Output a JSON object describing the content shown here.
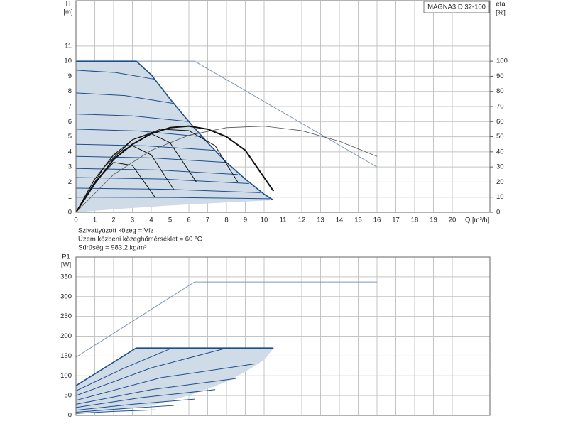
{
  "chart_data": [
    {
      "type": "line",
      "title": "MAGNA3 D 32-100",
      "ylabel": "H",
      "yunit": "[m]",
      "y2label": "eta",
      "y2unit": "[%]",
      "xlabel": "Q [m³/h]",
      "annotations": [
        "Szivattyúzott közeg = Víz",
        "Üzem közbeni közeghőmérséklet = 60 °C",
        "Sűrűség = 983.2 kg/m³"
      ],
      "xlim": [
        0,
        22
      ],
      "xticks": [
        0,
        1,
        2,
        3,
        4,
        5,
        6,
        7,
        8,
        9,
        10,
        11,
        12,
        13,
        14,
        15,
        16,
        17,
        18,
        19,
        20
      ],
      "ylim": [
        0,
        14
      ],
      "yticks": [
        0,
        1,
        2,
        3,
        4,
        5,
        6,
        7,
        8,
        9,
        10,
        11
      ],
      "y2lim": [
        0,
        140
      ],
      "y2ticks": [
        0,
        10,
        20,
        30,
        40,
        50,
        60,
        70,
        80,
        90,
        100
      ],
      "grid": true,
      "areas": [
        {
          "color": "#cfdbe7",
          "x": [
            0,
            3.2,
            4,
            5,
            6,
            7,
            8,
            9,
            10,
            10.5,
            8,
            5,
            2,
            0
          ],
          "values": [
            10,
            10,
            9.1,
            7.5,
            6.0,
            4.6,
            3.3,
            2.2,
            1.2,
            0.8,
            0.65,
            0.45,
            0.2,
            0
          ]
        }
      ],
      "series": [
        {
          "color": "#7f96b8",
          "linewidth": 1,
          "x": [
            0,
            6.3,
            16
          ],
          "values": [
            10,
            10,
            3
          ]
        },
        {
          "color": "#1f4e8c",
          "linewidth": 1.6,
          "x": [
            0,
            3.2,
            4,
            5,
            6,
            7,
            8,
            9,
            10,
            10.5
          ],
          "values": [
            10,
            10,
            9.1,
            7.5,
            6.0,
            4.6,
            3.3,
            2.2,
            1.2,
            0.8
          ]
        },
        {
          "color": "#1f4e8c",
          "linewidth": 1,
          "x": [
            0,
            2.1,
            4.2
          ],
          "values": [
            9.4,
            9.25,
            8.8
          ]
        },
        {
          "color": "#1f4e8c",
          "linewidth": 1,
          "x": [
            0,
            2.6,
            5.2
          ],
          "values": [
            7.9,
            7.72,
            7.2
          ]
        },
        {
          "color": "#1f4e8c",
          "linewidth": 1,
          "x": [
            0,
            3.0,
            6.0
          ],
          "values": [
            6.5,
            6.38,
            6.0
          ]
        },
        {
          "color": "#1f4e8c",
          "linewidth": 1,
          "x": [
            0,
            3.35,
            6.7
          ],
          "values": [
            5.5,
            5.38,
            5.0
          ]
        },
        {
          "color": "#1f4e8c",
          "linewidth": 1,
          "x": [
            0,
            3.7,
            7.4
          ],
          "values": [
            4.5,
            4.4,
            4.1
          ]
        },
        {
          "color": "#1f4e8c",
          "linewidth": 1,
          "x": [
            0,
            4.0,
            8.0
          ],
          "values": [
            3.7,
            3.6,
            3.3
          ]
        },
        {
          "color": "#1f4e8c",
          "linewidth": 1,
          "x": [
            0,
            4.3,
            8.6
          ],
          "values": [
            2.9,
            2.8,
            2.5
          ]
        },
        {
          "color": "#1f4e8c",
          "linewidth": 1,
          "x": [
            0,
            4.6,
            9.2
          ],
          "values": [
            2.3,
            2.2,
            1.9
          ]
        },
        {
          "color": "#1f4e8c",
          "linewidth": 1,
          "x": [
            0,
            4.9,
            9.8
          ],
          "values": [
            1.6,
            1.52,
            1.3
          ]
        },
        {
          "color": "#1f4e8c",
          "linewidth": 1,
          "x": [
            0,
            5.15,
            10.3
          ],
          "values": [
            1.0,
            0.98,
            0.9
          ]
        },
        {
          "color": "#555555",
          "linewidth": 0.8,
          "axis": "y2",
          "x": [
            0,
            2,
            4,
            6,
            8,
            10,
            12,
            14,
            16
          ],
          "values": [
            0,
            25,
            41,
            51,
            56,
            57,
            54,
            47,
            37
          ]
        },
        {
          "color": "#111111",
          "linewidth": 1,
          "axis": "y2",
          "x": [
            0,
            1,
            2,
            3,
            4.2
          ],
          "values": [
            0,
            20,
            33,
            31,
            10
          ]
        },
        {
          "color": "#111111",
          "linewidth": 1,
          "axis": "y2",
          "x": [
            0,
            1,
            2,
            3,
            4,
            5.2
          ],
          "values": [
            0,
            22,
            38,
            44,
            38,
            15
          ]
        },
        {
          "color": "#111111",
          "linewidth": 1,
          "axis": "y2",
          "x": [
            0,
            1,
            2,
            3,
            4,
            5,
            6.4
          ],
          "values": [
            0,
            22,
            38,
            48,
            52,
            46,
            20
          ]
        },
        {
          "color": "#111111",
          "linewidth": 1,
          "axis": "y2",
          "x": [
            0,
            1.5,
            3,
            4.5,
            6,
            7.4,
            8.6
          ],
          "values": [
            0,
            30,
            48,
            55,
            54,
            44,
            20
          ]
        },
        {
          "color": "#111111",
          "linewidth": 2,
          "axis": "y2",
          "x": [
            0,
            1,
            2,
            3,
            4,
            5,
            6,
            7,
            8,
            9,
            10,
            10.5
          ],
          "values": [
            0,
            19,
            35,
            45,
            52,
            56,
            57,
            55,
            50,
            41,
            23,
            14
          ]
        }
      ]
    },
    {
      "type": "line",
      "ylabel": "P1",
      "yunit": "[W]",
      "xlim": [
        0,
        22
      ],
      "xticks": [
        0,
        1,
        2,
        3,
        4,
        5,
        6,
        7,
        8,
        9,
        10,
        11,
        12,
        13,
        14,
        15,
        16,
        17,
        18,
        19,
        20
      ],
      "show_xtick_labels": false,
      "ylim": [
        0,
        400
      ],
      "yticks": [
        0,
        50,
        100,
        150,
        200,
        250,
        300,
        350
      ],
      "grid": true,
      "areas": [
        {
          "color": "#cfdbe7",
          "x": [
            0,
            3.2,
            10.5,
            10,
            9,
            8,
            6,
            4,
            2,
            0
          ],
          "values": [
            75,
            170,
            170,
            140,
            110,
            85,
            50,
            25,
            12,
            5
          ]
        }
      ],
      "series": [
        {
          "color": "#7f96b8",
          "linewidth": 1,
          "x": [
            0,
            6.3,
            16
          ],
          "values": [
            147,
            337,
            337
          ]
        },
        {
          "color": "#1f4e8c",
          "linewidth": 1.6,
          "x": [
            0,
            3.2,
            10.5
          ],
          "values": [
            75,
            170,
            170
          ]
        },
        {
          "color": "#1f4e8c",
          "linewidth": 1,
          "x": [
            0,
            2.5,
            5.1
          ],
          "values": [
            62,
            118,
            170
          ]
        },
        {
          "color": "#1f4e8c",
          "linewidth": 1,
          "x": [
            0,
            4,
            8.0
          ],
          "values": [
            50,
            120,
            170
          ]
        },
        {
          "color": "#1f4e8c",
          "linewidth": 1,
          "x": [
            0,
            4.5,
            9.5
          ],
          "values": [
            38,
            95,
            130
          ]
        },
        {
          "color": "#1f4e8c",
          "linewidth": 1,
          "x": [
            0,
            4,
            8.5
          ],
          "values": [
            28,
            65,
            93
          ]
        },
        {
          "color": "#1f4e8c",
          "linewidth": 1,
          "x": [
            0,
            3.5,
            7.4
          ],
          "values": [
            20,
            45,
            65
          ]
        },
        {
          "color": "#1f4e8c",
          "linewidth": 1,
          "x": [
            0,
            3,
            6.3
          ],
          "values": [
            13,
            28,
            41
          ]
        },
        {
          "color": "#1f4e8c",
          "linewidth": 1,
          "x": [
            0,
            2.5,
            5.2
          ],
          "values": [
            8,
            17,
            25
          ]
        },
        {
          "color": "#1f4e8c",
          "linewidth": 1,
          "x": [
            0,
            2,
            4.2
          ],
          "values": [
            5,
            10,
            14
          ]
        }
      ]
    }
  ]
}
